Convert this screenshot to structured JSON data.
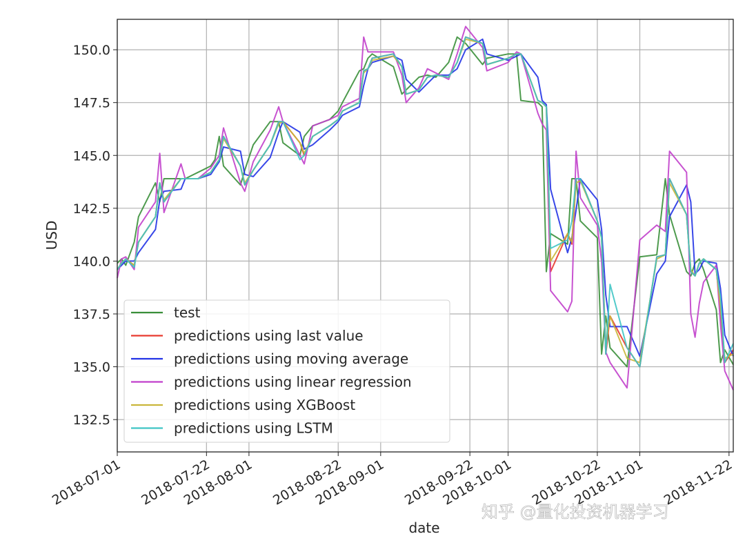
{
  "chart_data": {
    "type": "line",
    "title": "",
    "xlabel": "date",
    "ylabel": "USD",
    "xlim": [
      "2018-07-01",
      "2018-11-23"
    ],
    "ylim": [
      130.97,
      151.44
    ],
    "grid": true,
    "legend_position": "lower-left",
    "y_ticks": [
      "132.5",
      "135.0",
      "137.5",
      "140.0",
      "142.5",
      "145.0",
      "147.5",
      "150.0"
    ],
    "x_ticks": [
      "2018-07-01",
      "2018-07-22",
      "2018-08-01",
      "2018-08-22",
      "2018-09-01",
      "2018-09-22",
      "2018-10-01",
      "2018-10-22",
      "2018-11-01",
      "2018-11-22"
    ],
    "x": [
      "2018-07-01",
      "2018-07-02",
      "2018-07-03",
      "2018-07-05",
      "2018-07-06",
      "2018-07-10",
      "2018-07-11",
      "2018-07-12",
      "2018-07-16",
      "2018-07-17",
      "2018-07-20",
      "2018-07-23",
      "2018-07-24",
      "2018-07-25",
      "2018-07-26",
      "2018-07-30",
      "2018-07-31",
      "2018-08-02",
      "2018-08-06",
      "2018-08-08",
      "2018-08-09",
      "2018-08-13",
      "2018-08-14",
      "2018-08-16",
      "2018-08-20",
      "2018-08-22",
      "2018-08-23",
      "2018-08-27",
      "2018-08-28",
      "2018-08-29",
      "2018-08-30",
      "2018-09-04",
      "2018-09-06",
      "2018-09-07",
      "2018-09-10",
      "2018-09-12",
      "2018-09-14",
      "2018-09-17",
      "2018-09-19",
      "2018-09-21",
      "2018-09-25",
      "2018-09-26",
      "2018-10-01",
      "2018-10-03",
      "2018-10-04",
      "2018-10-08",
      "2018-10-09",
      "2018-10-10",
      "2018-10-11",
      "2018-10-15",
      "2018-10-16",
      "2018-10-17",
      "2018-10-18",
      "2018-10-22",
      "2018-10-23",
      "2018-10-24",
      "2018-10-25",
      "2018-10-29",
      "2018-11-01",
      "2018-11-05",
      "2018-11-07",
      "2018-11-08",
      "2018-11-12",
      "2018-11-13",
      "2018-11-14",
      "2018-11-15",
      "2018-11-16",
      "2018-11-19",
      "2018-11-20",
      "2018-11-21",
      "2018-11-23"
    ],
    "series": [
      {
        "name": "test",
        "color": "#3a8f3a",
        "values": [
          139.9,
          140.1,
          139.8,
          140.9,
          142.1,
          143.7,
          142.8,
          143.9,
          143.9,
          143.9,
          144.2,
          144.5,
          144.8,
          145.9,
          144.5,
          143.6,
          144.3,
          145.5,
          146.6,
          146.6,
          145.6,
          145.0,
          145.9,
          146.4,
          146.7,
          147.1,
          147.5,
          149.0,
          149.1,
          149.6,
          149.8,
          149.2,
          147.9,
          148.1,
          148.7,
          148.8,
          148.7,
          149.4,
          150.6,
          150.3,
          149.3,
          149.6,
          149.8,
          149.8,
          147.6,
          147.5,
          147.3,
          139.5,
          141.3,
          140.8,
          143.9,
          143.9,
          141.9,
          141.1,
          135.6,
          137.4,
          135.9,
          135.0,
          140.2,
          140.3,
          143.9,
          142.2,
          139.5,
          139.3,
          139.9,
          140.1,
          139.6,
          137.7,
          135.2,
          135.8,
          135.1
        ]
      },
      {
        "name": "predictions using last value",
        "color": "#e8392e",
        "values": [
          139.6,
          139.9,
          140.1,
          139.8,
          140.9,
          142.1,
          143.7,
          142.8,
          143.9,
          143.9,
          143.9,
          144.2,
          144.5,
          144.8,
          145.9,
          144.5,
          143.6,
          144.3,
          145.5,
          146.6,
          146.6,
          145.6,
          145.0,
          145.9,
          146.4,
          146.7,
          147.1,
          147.5,
          149.0,
          149.1,
          149.6,
          149.8,
          149.2,
          147.9,
          148.1,
          148.7,
          148.8,
          148.7,
          149.4,
          150.6,
          150.3,
          149.3,
          149.6,
          149.8,
          149.8,
          147.6,
          147.5,
          147.3,
          139.5,
          141.3,
          140.8,
          143.9,
          143.9,
          141.9,
          141.1,
          135.6,
          137.4,
          135.9,
          135.0,
          140.2,
          140.3,
          143.9,
          142.2,
          139.5,
          139.3,
          139.9,
          140.1,
          139.6,
          137.7,
          135.2,
          135.8
        ]
      },
      {
        "name": "predictions using moving average",
        "color": "#2233e6",
        "values": [
          139.6,
          139.8,
          140.0,
          140.0,
          140.4,
          141.5,
          142.9,
          143.3,
          143.4,
          143.9,
          143.9,
          144.1,
          144.4,
          144.7,
          145.4,
          145.2,
          144.1,
          144.0,
          144.9,
          146.1,
          146.6,
          146.1,
          145.3,
          145.5,
          146.2,
          146.6,
          146.9,
          147.3,
          148.3,
          149.1,
          149.4,
          149.7,
          149.5,
          148.6,
          148.0,
          148.4,
          148.8,
          148.8,
          149.1,
          150.0,
          150.5,
          149.8,
          149.5,
          149.7,
          149.8,
          148.7,
          147.6,
          147.4,
          143.4,
          140.4,
          141.1,
          142.4,
          143.9,
          142.9,
          141.5,
          138.4,
          136.9,
          136.9,
          135.5,
          139.4,
          140.0,
          142.1,
          143.6,
          142.8,
          139.4,
          139.6,
          140.0,
          139.9,
          138.7,
          136.5,
          135.5
        ]
      },
      {
        "name": "predictions using linear regression",
        "color": "#c13fcb",
        "values": [
          139.2,
          140.1,
          140.2,
          139.6,
          141.6,
          142.8,
          145.1,
          142.3,
          144.6,
          143.9,
          143.9,
          144.4,
          144.7,
          145.0,
          146.3,
          143.7,
          143.3,
          144.7,
          146.2,
          147.3,
          146.6,
          145.0,
          144.6,
          146.4,
          146.7,
          146.9,
          147.3,
          147.7,
          150.6,
          149.9,
          149.9,
          149.9,
          148.8,
          147.5,
          148.2,
          149.1,
          148.9,
          148.6,
          149.8,
          151.1,
          150.1,
          149.0,
          149.4,
          149.9,
          149.8,
          147.0,
          146.5,
          146.2,
          138.6,
          137.6,
          138.1,
          145.2,
          143.0,
          141.7,
          140.0,
          135.7,
          135.2,
          134.0,
          141.0,
          141.7,
          141.4,
          145.2,
          144.2,
          137.5,
          136.4,
          138.0,
          139.0,
          139.8,
          137.0,
          134.8,
          133.9
        ]
      },
      {
        "name": "predictions using XGBoost",
        "color": "#c9b63a",
        "values": [
          139.6,
          139.9,
          140.1,
          139.8,
          140.9,
          142.1,
          143.6,
          142.9,
          143.9,
          143.9,
          143.9,
          144.2,
          144.5,
          144.8,
          145.8,
          144.5,
          143.7,
          144.3,
          145.5,
          146.5,
          146.6,
          145.6,
          145.1,
          145.9,
          146.4,
          146.7,
          147.1,
          147.5,
          148.9,
          149.1,
          149.5,
          149.7,
          149.2,
          147.9,
          148.1,
          148.7,
          148.8,
          148.7,
          149.4,
          150.5,
          150.3,
          149.3,
          149.6,
          149.8,
          149.8,
          147.6,
          147.5,
          147.3,
          140.0,
          141.3,
          140.9,
          143.7,
          143.8,
          141.9,
          141.1,
          136.0,
          137.4,
          135.4,
          135.2,
          140.1,
          140.3,
          143.7,
          142.2,
          139.6,
          139.3,
          139.9,
          140.1,
          139.6,
          137.8,
          135.4,
          135.6
        ]
      },
      {
        "name": "predictions using LSTM",
        "color": "#3fc4c4",
        "values": [
          139.6,
          139.9,
          140.1,
          139.7,
          140.9,
          142.1,
          143.7,
          142.8,
          143.9,
          143.9,
          143.9,
          144.2,
          144.5,
          144.8,
          145.9,
          144.5,
          143.6,
          144.3,
          145.5,
          146.6,
          146.6,
          144.8,
          145.0,
          145.9,
          146.4,
          146.7,
          147.1,
          147.5,
          149.0,
          149.1,
          149.6,
          149.8,
          149.2,
          147.9,
          148.1,
          148.7,
          148.8,
          148.7,
          149.4,
          150.6,
          150.3,
          149.3,
          149.6,
          149.8,
          149.8,
          147.6,
          147.5,
          147.3,
          140.6,
          141.0,
          141.9,
          143.9,
          143.9,
          141.9,
          141.1,
          135.6,
          138.9,
          135.9,
          135.0,
          140.2,
          140.3,
          143.9,
          142.2,
          139.5,
          139.3,
          139.9,
          140.1,
          139.6,
          138.3,
          135.2,
          136.1
        ]
      }
    ]
  },
  "watermark": "知乎 @量化投资机器学习"
}
